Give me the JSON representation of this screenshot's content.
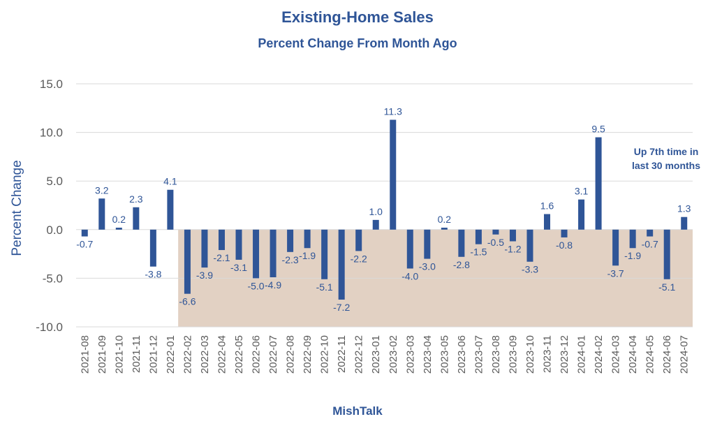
{
  "chart_data": {
    "type": "bar",
    "title": "Existing-Home Sales",
    "subtitle": "Percent Change From Month Ago",
    "xlabel": "MishTalk",
    "ylabel": "Percent Change",
    "ylim": [
      -10,
      15
    ],
    "yticks": [
      "15.0",
      "10.0",
      "5.0",
      "0.0",
      "-5.0",
      "-10.0"
    ],
    "grid": true,
    "annotation": [
      "Up 7th time in",
      "last 30 months"
    ],
    "shaded_region": {
      "from": "2022-02",
      "to": "2024-07",
      "color": "#e2d1c3"
    },
    "bar_color": "#2f5597",
    "categories": [
      "2021-08",
      "2021-09",
      "2021-10",
      "2021-11",
      "2021-12",
      "2022-01",
      "2022-02",
      "2022-03",
      "2022-04",
      "2022-05",
      "2022-06",
      "2022-07",
      "2022-08",
      "2022-09",
      "2022-10",
      "2022-11",
      "2022-12",
      "2023-01",
      "2023-02",
      "2023-03",
      "2023-04",
      "2023-05",
      "2023-06",
      "2023-07",
      "2023-08",
      "2023-09",
      "2023-10",
      "2023-11",
      "2023-12",
      "2024-01",
      "2024-02",
      "2024-03",
      "2024-04",
      "2024-05",
      "2024-06",
      "2024-07"
    ],
    "values": [
      -0.7,
      3.2,
      0.2,
      2.3,
      -3.8,
      4.1,
      -6.6,
      -3.9,
      -2.1,
      -3.1,
      -5.0,
      -4.9,
      -2.3,
      -1.9,
      -5.1,
      -7.2,
      -2.2,
      1.0,
      11.3,
      -4.0,
      -3.0,
      0.2,
      -2.8,
      -1.5,
      -0.5,
      -1.2,
      -3.3,
      1.6,
      -0.8,
      3.1,
      9.5,
      -3.7,
      -1.9,
      -0.7,
      -5.1,
      1.3
    ],
    "data_labels": [
      "-0.7",
      "3.2",
      "0.2",
      "2.3",
      "-3.8",
      "4.1",
      "-6.6",
      "-3.9",
      "-2.1",
      "-3.1",
      "-5.0",
      "-4.9",
      "-2.3",
      "-1.9",
      "-5.1",
      "-7.2",
      "-2.2",
      "1.0",
      "11.3",
      "-4.0",
      "-3.0",
      "0.2",
      "-2.8",
      "-1.5",
      "-0.5",
      "-1.2",
      "-3.3",
      "1.6",
      "-0.8",
      "3.1",
      "9.5",
      "-3.7",
      "-1.9",
      "-0.7",
      "-5.1",
      "1.3"
    ]
  }
}
